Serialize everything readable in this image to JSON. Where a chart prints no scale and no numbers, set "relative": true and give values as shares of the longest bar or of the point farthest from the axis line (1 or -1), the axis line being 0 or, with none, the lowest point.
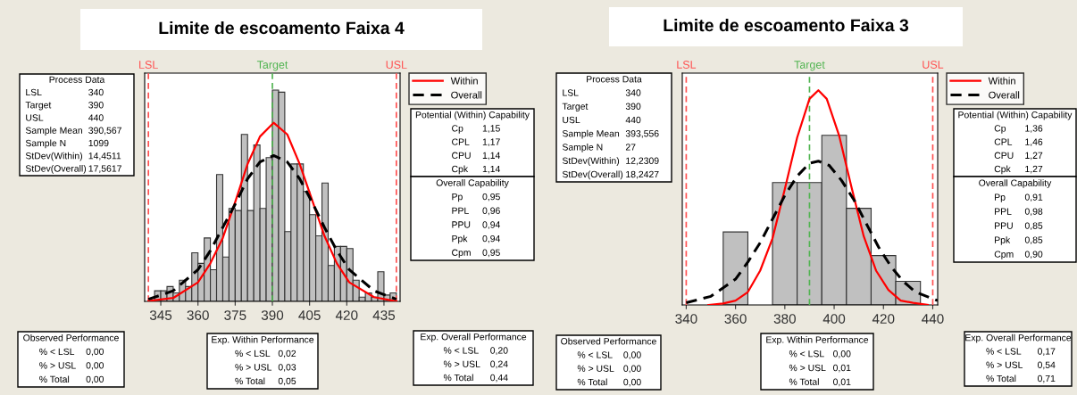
{
  "chart_data": [
    {
      "type": "histogram",
      "title": "Limite de escoamento Faixa 4",
      "relative": true,
      "color": "#c0c0c0",
      "bins": [
        342.5,
        345,
        347.5,
        350,
        352.5,
        355,
        357.5,
        360,
        362.5,
        365,
        367.5,
        370,
        372.5,
        375,
        377.5,
        380,
        382.5,
        385,
        387.5,
        390,
        392.5,
        395,
        397.5,
        400,
        402.5,
        405,
        407.5,
        410,
        412.5,
        415,
        417.5,
        420,
        422.5,
        425,
        427.5,
        430,
        432.5,
        435,
        437.5,
        440
      ],
      "values": [
        0.05,
        0.05,
        0.07,
        0.04,
        0.1,
        0.07,
        0.23,
        0.18,
        0.3,
        0.15,
        0.6,
        0.21,
        0.44,
        0.43,
        0.79,
        0.43,
        0.74,
        0.44,
        0.68,
        1.0,
        0.99,
        0.33,
        0.65,
        0.65,
        0.52,
        0.41,
        0.31,
        0.56,
        0.17,
        0.26,
        0.26,
        0.25,
        0.1,
        0.02,
        0.04,
        0.02,
        0.14,
        0.03,
        0.04
      ],
      "series": [
        {
          "name": "Within",
          "type": "line",
          "color": "#ff0000",
          "line_style": "solid",
          "x": [
            340,
            350,
            360,
            365,
            370,
            375,
            380,
            385,
            390.5,
            396,
            401,
            406,
            411,
            416,
            421,
            431,
            440
          ],
          "values": [
            0.002,
            0.016,
            0.09,
            0.18,
            0.3,
            0.47,
            0.65,
            0.78,
            0.845,
            0.79,
            0.65,
            0.48,
            0.31,
            0.18,
            0.09,
            0.02,
            0.0
          ]
        },
        {
          "name": "Overall",
          "type": "line",
          "color": "#000000",
          "line_style": "dashed",
          "x": [
            340,
            350,
            360,
            365,
            370,
            375,
            380,
            385,
            390.5,
            396,
            401,
            406,
            411,
            416,
            421,
            431,
            440
          ],
          "values": [
            0.01,
            0.05,
            0.15,
            0.24,
            0.35,
            0.46,
            0.58,
            0.66,
            0.69,
            0.66,
            0.58,
            0.47,
            0.35,
            0.24,
            0.15,
            0.05,
            0.01
          ]
        }
      ],
      "xlim": [
        338.5,
        441.5
      ],
      "xticks": [
        345,
        360,
        375,
        390,
        405,
        420,
        435
      ],
      "tick_labels": "x",
      "grid": false,
      "legend": "top right",
      "ref_lines": [
        {
          "axis": "x",
          "value": 340,
          "label": "LSL",
          "color": "#ff5050",
          "line_style": "dashed"
        },
        {
          "axis": "x",
          "value": 390,
          "label": "Target",
          "color": "#50b450",
          "line_style": "dashed"
        },
        {
          "axis": "x",
          "value": 440,
          "label": "USL",
          "color": "#ff5050",
          "line_style": "dashed"
        }
      ],
      "annotations": [
        "Process Data\nLSL\t340\nTarget\t390\nUSL\t440\nSample Mean\t390,567\nSample N\t1099\nStDev(Within)\t14,4511\nStDev(Overall)\t17,5617",
        "Potential (Within) Capability\nCp\t1,15\nCPL\t1,17\nCPU\t1,14\nCpk\t1,14",
        "Overall Capability\nPp\t0,95\nPPL\t0,96\nPPU\t0,94\nPpk\t0,94\nCpm\t0,95",
        "Observed Performance\n% < LSL\t0,00\n% > USL\t0,00\n% Total\t0,00",
        "Exp. Within Performance\n% < LSL\t0,02\n% > USL\t0,03\n% Total\t0,05",
        "Exp. Overall Performance\n% < LSL\t0,20\n% > USL\t0,24\n% Total\t0,44"
      ]
    },
    {
      "type": "histogram",
      "title": "Limite de escoamento Faixa 3",
      "relative": true,
      "color": "#c0c0c0",
      "bins": [
        355,
        365,
        375,
        385,
        395,
        405,
        415,
        425,
        435
      ],
      "values": [
        0.34,
        0.0,
        0.57,
        0.57,
        0.79,
        0.45,
        0.23,
        0.11
      ],
      "series": [
        {
          "name": "Within",
          "type": "line",
          "color": "#ff0000",
          "line_style": "solid",
          "x": [
            349,
            355,
            360,
            365,
            370,
            375,
            380,
            385,
            390,
            393.6,
            397,
            402,
            407,
            412,
            417,
            422,
            427,
            432,
            438
          ],
          "values": [
            0.0,
            0.007,
            0.02,
            0.06,
            0.16,
            0.31,
            0.54,
            0.78,
            0.96,
            1.0,
            0.96,
            0.79,
            0.55,
            0.32,
            0.16,
            0.07,
            0.02,
            0.01,
            0.0
          ]
        },
        {
          "name": "Overall",
          "type": "line",
          "color": "#000000",
          "line_style": "dashed",
          "x": [
            340,
            350,
            360,
            365,
            370,
            375,
            380,
            385,
            390,
            393.6,
            398,
            403,
            408,
            413,
            418,
            423,
            428,
            433,
            442
          ],
          "values": [
            0.01,
            0.04,
            0.12,
            0.2,
            0.29,
            0.4,
            0.51,
            0.6,
            0.66,
            0.67,
            0.65,
            0.58,
            0.49,
            0.38,
            0.27,
            0.18,
            0.11,
            0.06,
            0.02
          ]
        }
      ],
      "xlim": [
        338.4,
        442
      ],
      "xticks": [
        340,
        360,
        380,
        400,
        420,
        440
      ],
      "tick_labels": "x",
      "grid": false,
      "legend": "top right",
      "ref_lines": [
        {
          "axis": "x",
          "value": 340,
          "label": "LSL",
          "color": "#ff5050",
          "line_style": "dashed"
        },
        {
          "axis": "x",
          "value": 390,
          "label": "Target",
          "color": "#50b450",
          "line_style": "dashed"
        },
        {
          "axis": "x",
          "value": 440,
          "label": "USL",
          "color": "#ff5050",
          "line_style": "dashed"
        }
      ],
      "annotations": [
        "Process Data\nLSL\t340\nTarget\t390\nUSL\t440\nSample Mean\t393,556\nSample N\t27\nStDev(Within)\t12,2309\nStDev(Overall)\t18,2427",
        "Potential (Within) Capability\nCp\t1,36\nCPL\t1,46\nCPU\t1,27\nCpk\t1,27",
        "Overall Capability\nPp\t0,91\nPPL\t0,98\nPPU\t0,85\nPpk\t0,85\nCpm\t0,90",
        "Observed Performance\n% < LSL\t0,00\n% > USL\t0,00\n% Total\t0,00",
        "Exp. Within Performance\n% < LSL\t0,00\n% > USL\t0,01\n% Total\t0,01",
        "Exp. Overall Performance\n% < LSL\t0,17\n% > USL\t0,54\n% Total\t0,71"
      ]
    }
  ]
}
